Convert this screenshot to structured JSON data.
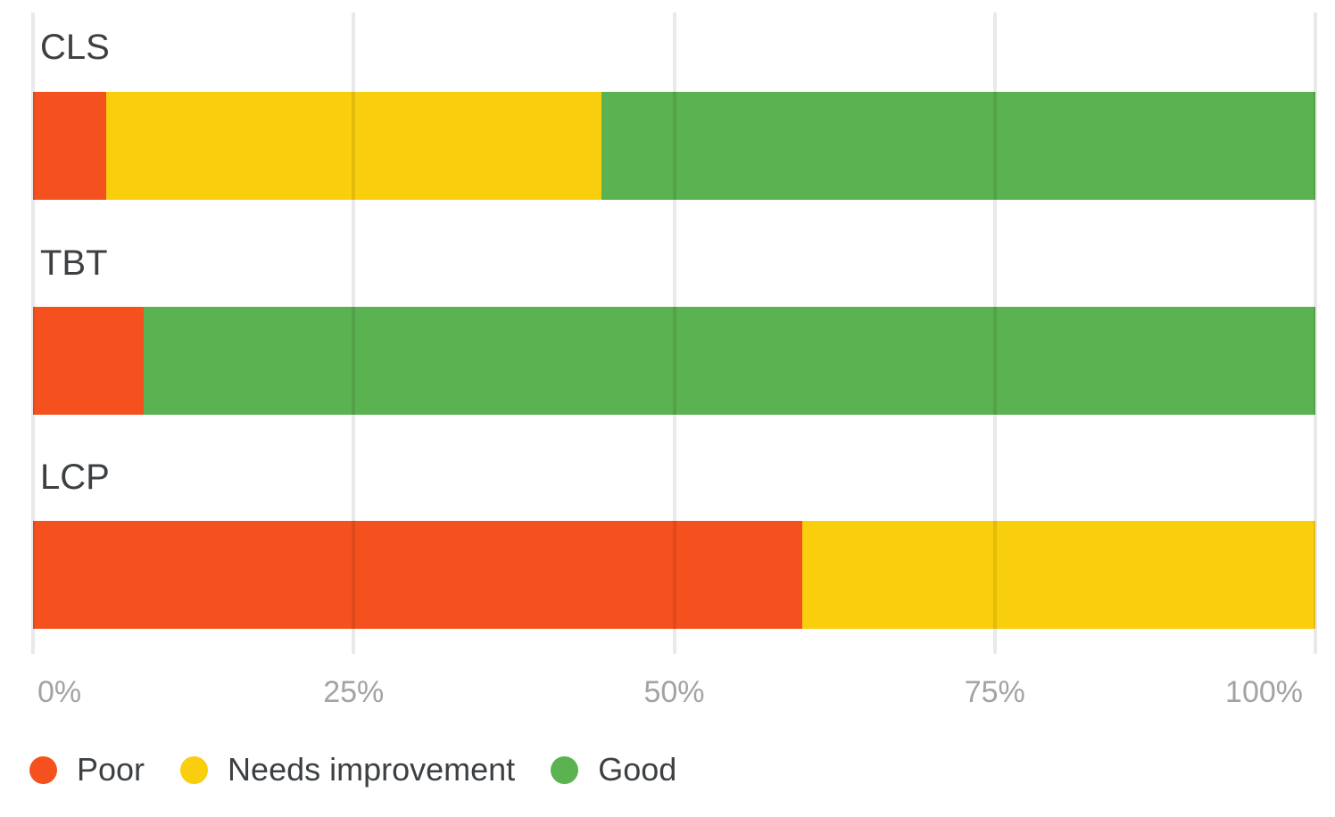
{
  "chart_data": {
    "type": "bar",
    "orientation": "horizontal",
    "stacked": true,
    "stack_mode": "percent",
    "title": "",
    "xlabel": "",
    "ylabel": "",
    "categories": [
      "CLS",
      "TBT",
      "LCP"
    ],
    "series": [
      {
        "name": "Poor",
        "color": "#f4511e",
        "values": [
          5.7,
          8.6,
          60.0
        ]
      },
      {
        "name": "Needs improvement",
        "color": "#f9ce0d",
        "values": [
          38.6,
          0.0,
          40.0
        ]
      },
      {
        "name": "Good",
        "color": "#5bb250",
        "values": [
          55.7,
          91.4,
          0.0
        ]
      }
    ],
    "x_ticks": [
      "0%",
      "25%",
      "50%",
      "75%",
      "100%"
    ],
    "x_tick_values": [
      0,
      25,
      50,
      75,
      100
    ],
    "xlim": [
      0,
      100
    ],
    "grid": true,
    "gridline_color": "rgba(0,0,0,0.085)",
    "legend_position": "bottom-left"
  },
  "colors": {
    "background": "#ffffff",
    "category_label_text": "#3c4043",
    "axis_label_text": "#a3a3a3",
    "legend_text": "#3c4043"
  }
}
